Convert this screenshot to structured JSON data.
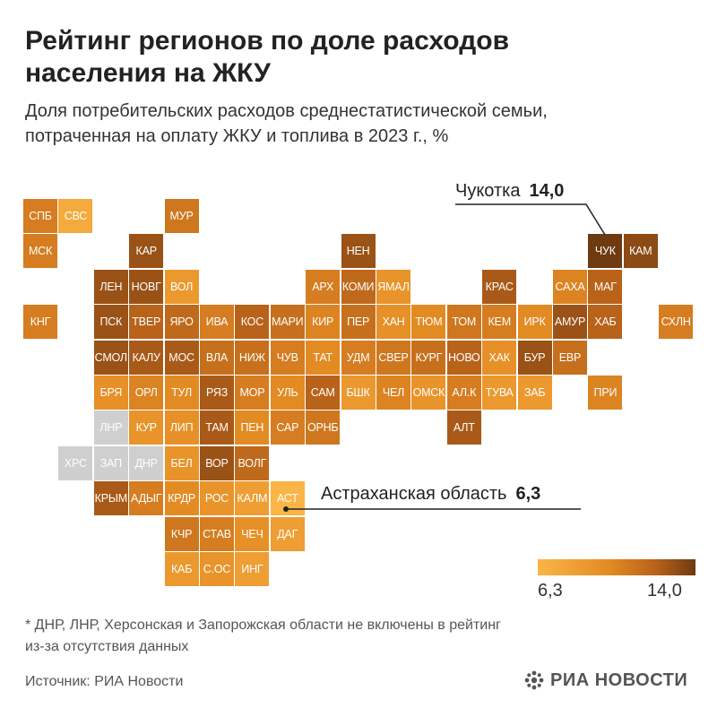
{
  "title": "Рейтинг регионов по доле расходов\nнаселения на ЖКУ",
  "subtitle": "Доля потребительских расходов среднестатистической семьи,\nпотраченная на оплату ЖКУ и топлива в 2023 г., %",
  "callouts": {
    "chukotka": {
      "label": "Чукотка",
      "value": "14,0"
    },
    "astrakhan": {
      "label": "Астраханская область",
      "value": "6,3"
    }
  },
  "legend": {
    "min": "6,3",
    "max": "14,0"
  },
  "footnote": "* ДНР, ЛНР, Херсонская и Запорожская области не включены в рейтинг\nиз-за отсутствия данных",
  "source": "Источник: РИА Новости",
  "logo": "РИА НОВОСТИ",
  "colors": {
    "no_data": "#cfcfcf",
    "scale_low": "#fbb546",
    "scale_high": "#6e3a10"
  },
  "regions": [
    {
      "code": "СПБ",
      "row": 0,
      "col": 0,
      "level": 0.55
    },
    {
      "code": "СВС",
      "row": 0,
      "col": 1,
      "level": 0.12
    },
    {
      "code": "МУР",
      "row": 0,
      "col": 4,
      "level": 0.6
    },
    {
      "code": "МСК",
      "row": 1,
      "col": 0,
      "level": 0.55
    },
    {
      "code": "КАР",
      "row": 1,
      "col": 3,
      "level": 0.85
    },
    {
      "code": "НЕН",
      "row": 1,
      "col": 9,
      "level": 0.85
    },
    {
      "code": "ЧУК",
      "row": 1,
      "col": 16,
      "level": 1.0
    },
    {
      "code": "КАМ",
      "row": 1,
      "col": 17,
      "level": 0.9
    },
    {
      "code": "ЛЕН",
      "row": 2,
      "col": 2,
      "level": 0.85
    },
    {
      "code": "НОВГ",
      "row": 2,
      "col": 3,
      "level": 0.85
    },
    {
      "code": "ВОЛ",
      "row": 2,
      "col": 4,
      "level": 0.3
    },
    {
      "code": "АРХ",
      "row": 2,
      "col": 8,
      "level": 0.55
    },
    {
      "code": "КОМИ",
      "row": 2,
      "col": 9,
      "level": 0.7
    },
    {
      "code": "ЯМАЛ",
      "row": 2,
      "col": 10,
      "level": 0.35
    },
    {
      "code": "КРАС",
      "row": 2,
      "col": 13,
      "level": 0.8
    },
    {
      "code": "САХА",
      "row": 2,
      "col": 15,
      "level": 0.5
    },
    {
      "code": "МАГ",
      "row": 2,
      "col": 16,
      "level": 0.75
    },
    {
      "code": "КНГ",
      "row": 3,
      "col": 0,
      "level": 0.55
    },
    {
      "code": "ПСК",
      "row": 3,
      "col": 2,
      "level": 0.85
    },
    {
      "code": "ТВЕР",
      "row": 3,
      "col": 3,
      "level": 0.75
    },
    {
      "code": "ЯРО",
      "row": 3,
      "col": 4,
      "level": 0.7
    },
    {
      "code": "ИВА",
      "row": 3,
      "col": 5,
      "level": 0.55
    },
    {
      "code": "КОС",
      "row": 3,
      "col": 6,
      "level": 0.75
    },
    {
      "code": "МАРИ",
      "row": 3,
      "col": 7,
      "level": 0.65
    },
    {
      "code": "КИР",
      "row": 3,
      "col": 8,
      "level": 0.5
    },
    {
      "code": "ПЕР",
      "row": 3,
      "col": 9,
      "level": 0.65
    },
    {
      "code": "ХАН",
      "row": 3,
      "col": 10,
      "level": 0.4
    },
    {
      "code": "ТЮМ",
      "row": 3,
      "col": 11,
      "level": 0.45
    },
    {
      "code": "ТОМ",
      "row": 3,
      "col": 12,
      "level": 0.6
    },
    {
      "code": "КЕМ",
      "row": 3,
      "col": 13,
      "level": 0.55
    },
    {
      "code": "ИРК",
      "row": 3,
      "col": 14,
      "level": 0.45
    },
    {
      "code": "АМУР",
      "row": 3,
      "col": 15,
      "level": 0.85
    },
    {
      "code": "ХАБ",
      "row": 3,
      "col": 16,
      "level": 0.75
    },
    {
      "code": "СХЛН",
      "row": 3,
      "col": 18,
      "level": 0.55
    },
    {
      "code": "СМОЛ",
      "row": 4,
      "col": 2,
      "level": 0.85
    },
    {
      "code": "КАЛУ",
      "row": 4,
      "col": 3,
      "level": 0.8
    },
    {
      "code": "МОС",
      "row": 4,
      "col": 4,
      "level": 0.8
    },
    {
      "code": "ВЛА",
      "row": 4,
      "col": 5,
      "level": 0.65
    },
    {
      "code": "НИЖ",
      "row": 4,
      "col": 6,
      "level": 0.65
    },
    {
      "code": "ЧУВ",
      "row": 4,
      "col": 7,
      "level": 0.55
    },
    {
      "code": "ТАТ",
      "row": 4,
      "col": 8,
      "level": 0.45
    },
    {
      "code": "УДМ",
      "row": 4,
      "col": 9,
      "level": 0.55
    },
    {
      "code": "СВЕР",
      "row": 4,
      "col": 10,
      "level": 0.6
    },
    {
      "code": "КУРГ",
      "row": 4,
      "col": 11,
      "level": 0.65
    },
    {
      "code": "НОВО",
      "row": 4,
      "col": 12,
      "level": 0.75
    },
    {
      "code": "ХАК",
      "row": 4,
      "col": 13,
      "level": 0.4
    },
    {
      "code": "БУР",
      "row": 4,
      "col": 14,
      "level": 0.85
    },
    {
      "code": "ЕВР",
      "row": 4,
      "col": 15,
      "level": 0.65
    },
    {
      "code": "БРЯ",
      "row": 5,
      "col": 2,
      "level": 0.4
    },
    {
      "code": "ОРЛ",
      "row": 5,
      "col": 3,
      "level": 0.5
    },
    {
      "code": "ТУЛ",
      "row": 5,
      "col": 4,
      "level": 0.45
    },
    {
      "code": "РЯЗ",
      "row": 5,
      "col": 5,
      "level": 0.8
    },
    {
      "code": "МОР",
      "row": 5,
      "col": 6,
      "level": 0.55
    },
    {
      "code": "УЛЬ",
      "row": 5,
      "col": 7,
      "level": 0.45
    },
    {
      "code": "САМ",
      "row": 5,
      "col": 8,
      "level": 0.75
    },
    {
      "code": "БШК",
      "row": 5,
      "col": 9,
      "level": 0.3
    },
    {
      "code": "ЧЕЛ",
      "row": 5,
      "col": 10,
      "level": 0.5
    },
    {
      "code": "ОМСК",
      "row": 5,
      "col": 11,
      "level": 0.35
    },
    {
      "code": "АЛ.К",
      "row": 5,
      "col": 12,
      "level": 0.55
    },
    {
      "code": "ТУВА",
      "row": 5,
      "col": 13,
      "level": 0.3
    },
    {
      "code": "ЗАБ",
      "row": 5,
      "col": 14,
      "level": 0.3
    },
    {
      "code": "ПРИ",
      "row": 5,
      "col": 16,
      "level": 0.5
    },
    {
      "code": "ЛНР",
      "row": 6,
      "col": 2,
      "level": -1
    },
    {
      "code": "КУР",
      "row": 6,
      "col": 3,
      "level": 0.35
    },
    {
      "code": "ЛИП",
      "row": 6,
      "col": 4,
      "level": 0.4
    },
    {
      "code": "ТАМ",
      "row": 6,
      "col": 5,
      "level": 0.8
    },
    {
      "code": "ПЕН",
      "row": 6,
      "col": 6,
      "level": 0.45
    },
    {
      "code": "САР",
      "row": 6,
      "col": 7,
      "level": 0.55
    },
    {
      "code": "ОРНБ",
      "row": 6,
      "col": 8,
      "level": 0.6
    },
    {
      "code": "АЛТ",
      "row": 6,
      "col": 12,
      "level": 0.8
    },
    {
      "code": "ХРС",
      "row": 7,
      "col": 1,
      "level": -1
    },
    {
      "code": "ЗАП",
      "row": 7,
      "col": 2,
      "level": -1
    },
    {
      "code": "ДНР",
      "row": 7,
      "col": 3,
      "level": -1
    },
    {
      "code": "БЕЛ",
      "row": 7,
      "col": 4,
      "level": 0.35
    },
    {
      "code": "ВОР",
      "row": 7,
      "col": 5,
      "level": 0.85
    },
    {
      "code": "ВОЛГ",
      "row": 7,
      "col": 6,
      "level": 0.7
    },
    {
      "code": "КРЫМ",
      "row": 8,
      "col": 2,
      "level": 0.8
    },
    {
      "code": "АДЫГ",
      "row": 8,
      "col": 3,
      "level": 0.55
    },
    {
      "code": "КРДР",
      "row": 8,
      "col": 4,
      "level": 0.45
    },
    {
      "code": "РОС",
      "row": 8,
      "col": 5,
      "level": 0.35
    },
    {
      "code": "КАЛМ",
      "row": 8,
      "col": 6,
      "level": 0.25
    },
    {
      "code": "АСТ",
      "row": 8,
      "col": 7,
      "level": 0.0
    },
    {
      "code": "КЧР",
      "row": 9,
      "col": 4,
      "level": 0.6
    },
    {
      "code": "СТАВ",
      "row": 9,
      "col": 5,
      "level": 0.55
    },
    {
      "code": "ЧЕЧ",
      "row": 9,
      "col": 6,
      "level": 0.4
    },
    {
      "code": "ДАГ",
      "row": 9,
      "col": 7,
      "level": 0.25
    },
    {
      "code": "КАБ",
      "row": 10,
      "col": 4,
      "level": 0.3
    },
    {
      "code": "С.ОС",
      "row": 10,
      "col": 5,
      "level": 0.35
    },
    {
      "code": "ИНГ",
      "row": 10,
      "col": 6,
      "level": 0.25
    }
  ]
}
